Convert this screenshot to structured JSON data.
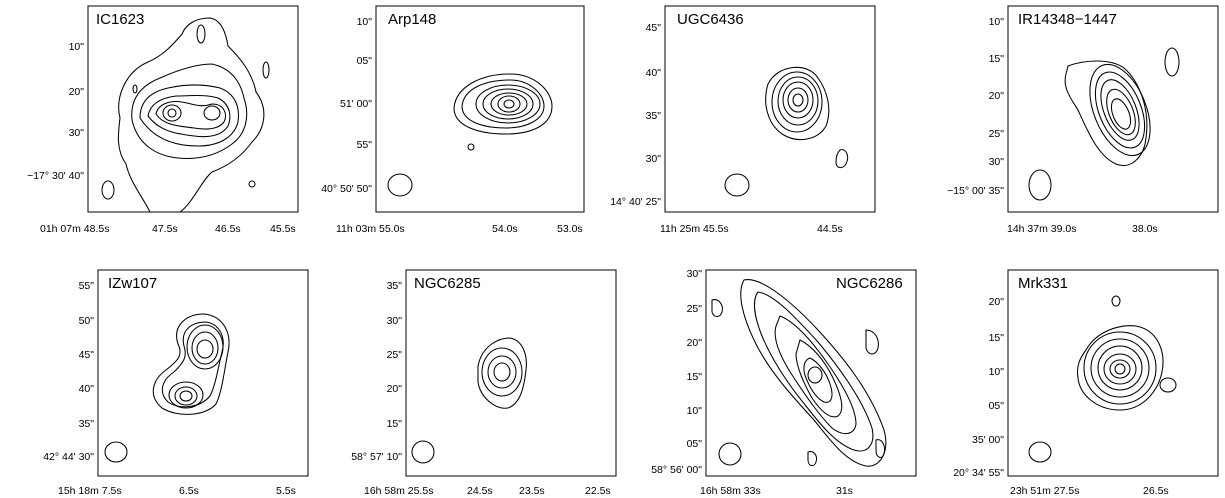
{
  "figure": {
    "panels": [
      {
        "name": "IC1623",
        "yticks": [
          "10\"",
          "20\"",
          "30\"",
          "40\""
        ],
        "ydeg": "−17° 30' 40\"",
        "xticks": [
          "01h 07m 48.5s",
          "47.5s",
          "46.5s",
          "45.5s"
        ]
      },
      {
        "name": "Arp148",
        "yticks": [
          "10\"",
          "05\"",
          "51' 00\"",
          "55\"",
          "40° 50' 50\""
        ],
        "xticks": [
          "11h 03m 55.0s",
          "54.0s",
          "53.0s"
        ]
      },
      {
        "name": "UGC6436",
        "yticks": [
          "45\"",
          "40\"",
          "35\"",
          "30\"",
          "14° 40' 25\""
        ],
        "xticks": [
          "11h 25m 45.5s",
          "44.5s"
        ]
      },
      {
        "name": "IR14348−1447",
        "yticks": [
          "10\"",
          "15\"",
          "20\"",
          "25\"",
          "30\"",
          "−15° 00' 35\""
        ],
        "xticks": [
          "14h 37m 39.0s",
          "38.0s"
        ]
      },
      {
        "name": "IZw107",
        "yticks": [
          "55\"",
          "50\"",
          "45\"",
          "40\"",
          "35\"",
          "42° 44' 30\""
        ],
        "xticks": [
          "15h 18m 7.5s",
          "6.5s",
          "5.5s"
        ]
      },
      {
        "name": "NGC6285",
        "yticks": [
          "35\"",
          "30\"",
          "25\"",
          "20\"",
          "15\"",
          "58° 57' 10\""
        ],
        "xticks": [
          "16h 58m 25.5s",
          "24.5s",
          "23.5s",
          "22.5s"
        ]
      },
      {
        "name": "NGC6286",
        "yticks": [
          "30\"",
          "25\"",
          "20\"",
          "15\"",
          "10\"",
          "05\"",
          "58° 56' 00\""
        ],
        "xticks": [
          "16h 58m 33s",
          "31s"
        ]
      },
      {
        "name": "Mrk331",
        "yticks": [
          "20\"",
          "15\"",
          "10\"",
          "05\"",
          "35' 00\"",
          "20° 34' 55\""
        ],
        "xticks": [
          "23h 51m 27.5s",
          "26.5s"
        ]
      }
    ]
  }
}
